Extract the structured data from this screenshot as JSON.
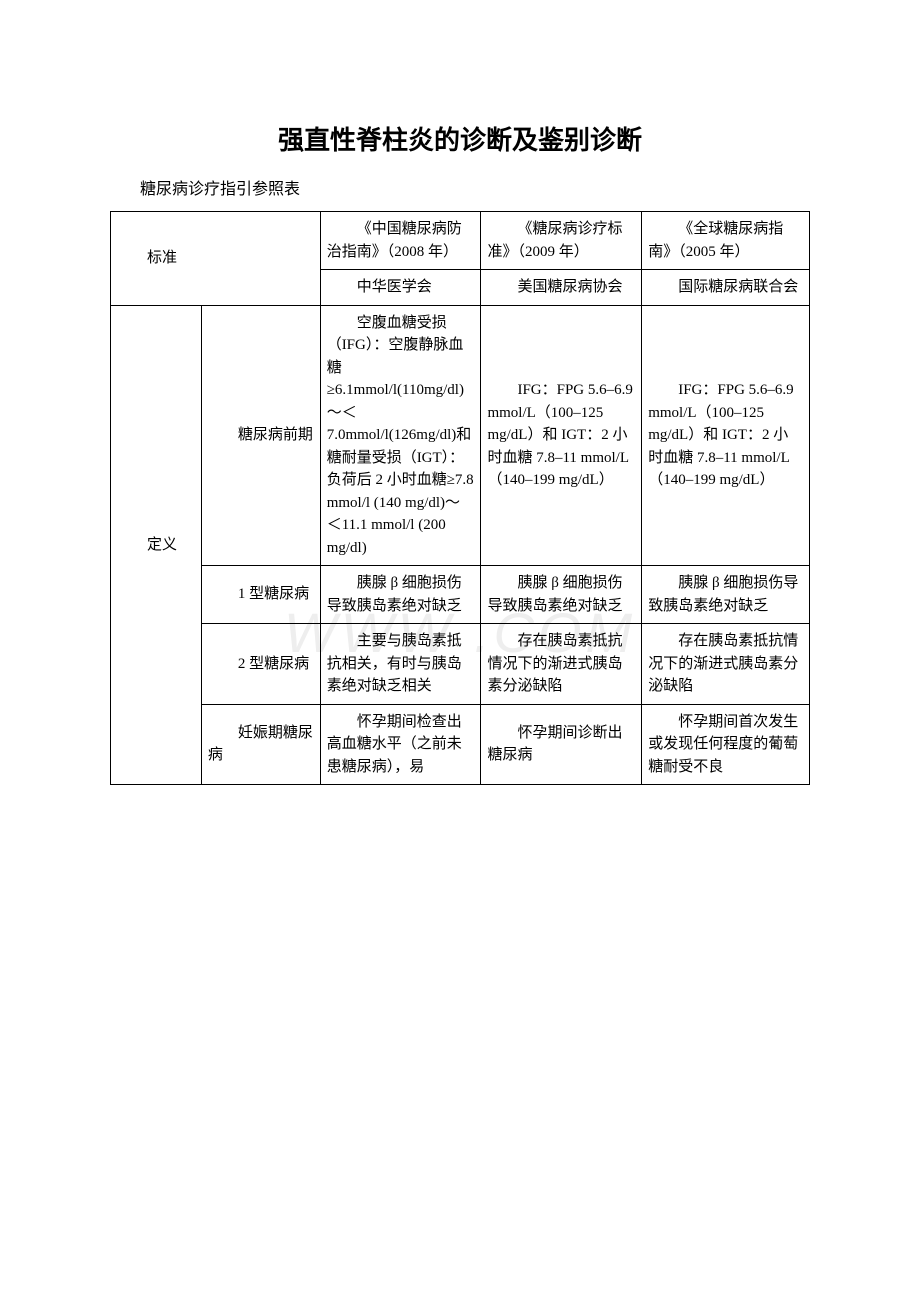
{
  "title": "强直性脊柱炎的诊断及鉴别诊断",
  "subtitle": "糖尿病诊疗指引参照表",
  "watermark": "WWW        .COM",
  "header": {
    "h_standard": "标准",
    "row1": {
      "c": "《中国糖尿病防治指南》（2008 年）",
      "d": "《糖尿病诊疗标准》（2009 年）",
      "e": "《全球糖尿病指南》（2005 年）"
    },
    "row2": {
      "c": "中华医学会",
      "d": "美国糖尿病协会",
      "e": "国际糖尿病联合会"
    }
  },
  "body": {
    "def_label": "定义",
    "r1": {
      "b": "糖尿病前期",
      "c": "空腹血糖受损（IFG）：空腹静脉血糖 ≥6.1mmol/l(110mg/dl)～＜7.0mmol/l(126mg/dl)和糖耐量受损（IGT）：负荷后 2 小时血糖≥7.8 mmol/l (140 mg/dl)～＜11.1 mmol/l (200 mg/dl)",
      "d": "IFG：FPG 5.6–6.9 mmol/L（100–125 mg/dL）和 IGT：2 小时血糖 7.8–11 mmol/L（140–199 mg/dL）",
      "e": "IFG：FPG 5.6–6.9 mmol/L（100–125 mg/dL）和 IGT：2 小时血糖 7.8–11 mmol/L（140–199 mg/dL）"
    },
    "r2": {
      "b": "1 型糖尿病",
      "c": "胰腺 β 细胞损伤导致胰岛素绝对缺乏",
      "d": "胰腺 β 细胞损伤导致胰岛素绝对缺乏",
      "e": "胰腺 β 细胞损伤导致胰岛素绝对缺乏"
    },
    "r3": {
      "b": "2 型糖尿病",
      "c": "主要与胰岛素抵抗相关，有时与胰岛素绝对缺乏相关",
      "d": "存在胰岛素抵抗情况下的渐进式胰岛素分泌缺陷",
      "e": "存在胰岛素抵抗情况下的渐进式胰岛素分泌缺陷"
    },
    "r4": {
      "b": "妊娠期糖尿病",
      "c": "怀孕期间检查出高血糖水平（之前未患糖尿病），易",
      "d": "怀孕期间诊断出糖尿病",
      "e": "怀孕期间首次发生或发现任何程度的葡萄糖耐受不良"
    }
  }
}
